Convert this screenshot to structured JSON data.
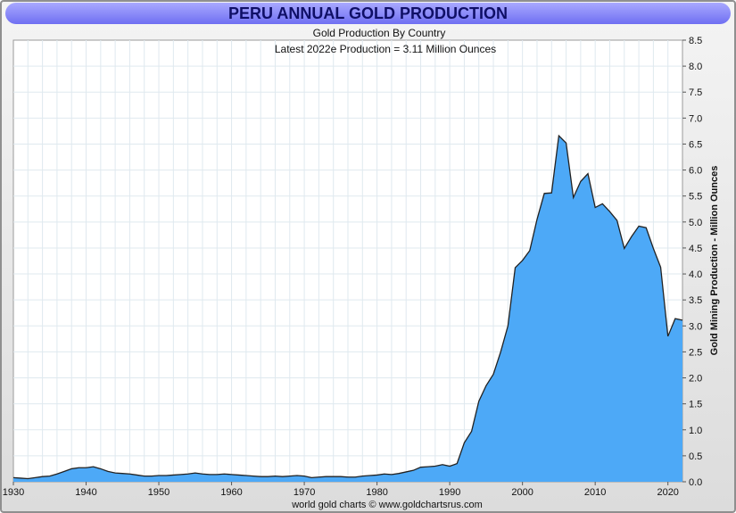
{
  "header": {
    "title": "PERU ANNUAL GOLD PRODUCTION"
  },
  "footer": {
    "credit": "world gold charts © www.goldchartsrus.com"
  },
  "colors": {
    "fill": "#4da9f7",
    "line": "#222222",
    "title_bg": "#8c8cf5",
    "title_text": "#0f0f66"
  },
  "chart_data": {
    "type": "area",
    "title": "PERU ANNUAL GOLD PRODUCTION",
    "subtitle_lines": [
      "Gold Production By Country",
      "Latest 2022e Production = 3.11 Million Ounces"
    ],
    "ylabel": "Gold Mining Production - Million Ounces",
    "xlabel": "",
    "xlim": [
      1930,
      2022
    ],
    "ylim": [
      0,
      8.5
    ],
    "x_ticks": [
      1930,
      1940,
      1950,
      1960,
      1970,
      1980,
      1990,
      2000,
      2010,
      2020
    ],
    "y_ticks": [
      "0.0",
      "0.5",
      "1.0",
      "1.5",
      "2.0",
      "2.5",
      "3.0",
      "3.5",
      "4.0",
      "4.5",
      "5.0",
      "5.5",
      "6.0",
      "6.5",
      "7.0",
      "7.5",
      "8.0",
      "8.5"
    ],
    "y_axis_side": "right",
    "grid": true,
    "legend": "none",
    "x": [
      1930,
      1931,
      1932,
      1933,
      1934,
      1935,
      1936,
      1937,
      1938,
      1939,
      1940,
      1941,
      1942,
      1943,
      1944,
      1945,
      1946,
      1947,
      1948,
      1949,
      1950,
      1951,
      1952,
      1953,
      1954,
      1955,
      1956,
      1957,
      1958,
      1959,
      1960,
      1961,
      1962,
      1963,
      1964,
      1965,
      1966,
      1967,
      1968,
      1969,
      1970,
      1971,
      1972,
      1973,
      1974,
      1975,
      1976,
      1977,
      1978,
      1979,
      1980,
      1981,
      1982,
      1983,
      1984,
      1985,
      1986,
      1987,
      1988,
      1989,
      1990,
      1991,
      1992,
      1993,
      1994,
      1995,
      1996,
      1997,
      1998,
      1999,
      2000,
      2001,
      2002,
      2003,
      2004,
      2005,
      2006,
      2007,
      2008,
      2009,
      2010,
      2011,
      2012,
      2013,
      2014,
      2015,
      2016,
      2017,
      2018,
      2019,
      2020,
      2021,
      2022
    ],
    "values": [
      0.08,
      0.07,
      0.06,
      0.08,
      0.1,
      0.11,
      0.15,
      0.2,
      0.25,
      0.27,
      0.27,
      0.29,
      0.25,
      0.2,
      0.17,
      0.16,
      0.15,
      0.13,
      0.11,
      0.11,
      0.12,
      0.12,
      0.13,
      0.14,
      0.15,
      0.17,
      0.15,
      0.14,
      0.14,
      0.15,
      0.14,
      0.13,
      0.12,
      0.11,
      0.1,
      0.1,
      0.11,
      0.1,
      0.11,
      0.12,
      0.11,
      0.08,
      0.09,
      0.1,
      0.1,
      0.1,
      0.09,
      0.09,
      0.11,
      0.12,
      0.13,
      0.15,
      0.14,
      0.16,
      0.19,
      0.22,
      0.28,
      0.29,
      0.3,
      0.33,
      0.3,
      0.35,
      0.75,
      0.97,
      1.55,
      1.85,
      2.07,
      2.5,
      3.0,
      4.12,
      4.26,
      4.45,
      5.05,
      5.55,
      5.56,
      6.66,
      6.52,
      5.47,
      5.78,
      5.93,
      5.28,
      5.35,
      5.2,
      5.03,
      4.49,
      4.72,
      4.92,
      4.89,
      4.49,
      4.13,
      2.8,
      3.14,
      3.11
    ]
  }
}
